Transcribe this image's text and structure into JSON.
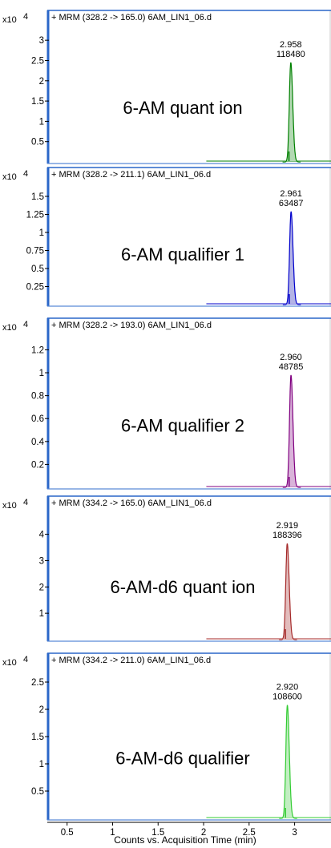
{
  "chart_data": [
    {
      "type": "line",
      "title": "+ MRM (328.2 -> 165.0) 6AM_LIN1_06.d",
      "annotation": "6-AM quant ion",
      "exponent_label": "x10",
      "exponent": "4",
      "color": "#008000",
      "fill": "#b3d9b3",
      "y_ticks": [
        "3",
        "2.5",
        "2",
        "1.5",
        "1",
        "0.5"
      ],
      "y_values": [
        3,
        2.5,
        2,
        1.5,
        1,
        0.5
      ],
      "ylim": [
        0,
        3.3
      ],
      "peak": {
        "rt": 2.958,
        "rt_label": "2.958",
        "area": "118480",
        "height": 2.45,
        "width": 0.035
      },
      "trace_start": 2.03
    },
    {
      "type": "line",
      "title": "+ MRM (328.2 -> 211.1) 6AM_LIN1_06.d",
      "annotation": "6-AM qualifier 1",
      "exponent_label": "x10",
      "exponent": "4",
      "color": "#0000cc",
      "fill": "#b3b3e6",
      "y_ticks": [
        "1.5",
        "1.25",
        "1",
        "0.75",
        "0.5",
        "0.25"
      ],
      "y_values": [
        1.5,
        1.25,
        1,
        0.75,
        0.5,
        0.25
      ],
      "ylim": [
        0,
        1.7
      ],
      "peak": {
        "rt": 2.961,
        "rt_label": "2.961",
        "area": "63487",
        "height": 1.29,
        "width": 0.035
      },
      "trace_start": 2.03
    },
    {
      "type": "line",
      "title": "+ MRM (328.2 -> 193.0) 6AM_LIN1_06.d",
      "annotation": "6-AM qualifier 2",
      "exponent_label": "x10",
      "exponent": "4",
      "color": "#800080",
      "fill": "#d9b3d9",
      "y_ticks": [
        "1.2",
        "1",
        "0.8",
        "0.6",
        "0.4",
        "0.2"
      ],
      "y_values": [
        1.2,
        1,
        0.8,
        0.6,
        0.4,
        0.2
      ],
      "ylim": [
        0,
        1.35
      ],
      "peak": {
        "rt": 2.96,
        "rt_label": "2.960",
        "area": "48785",
        "height": 0.98,
        "width": 0.035
      },
      "trace_start": 2.03
    },
    {
      "type": "line",
      "title": "+ MRM (334.2 -> 165.0) 6AM_LIN1_06.d",
      "annotation": "6-AM-d6 quant ion",
      "exponent_label": "x10",
      "exponent": "4",
      "color": "#a52a2a",
      "fill": "#e2bcbc",
      "y_ticks": [
        "4",
        "3",
        "2",
        "1"
      ],
      "y_values": [
        4,
        3,
        2,
        1
      ],
      "ylim": [
        0,
        4.9
      ],
      "peak": {
        "rt": 2.919,
        "rt_label": "2.919",
        "area": "188396",
        "height": 3.65,
        "width": 0.035
      },
      "trace_start": 2.03
    },
    {
      "type": "line",
      "title": "+ MRM (334.2 -> 211.0) 6AM_LIN1_06.d",
      "annotation": "6-AM-d6 qualifier",
      "exponent_label": "x10",
      "exponent": "4",
      "color": "#33cc33",
      "fill": "#c2eec2",
      "y_ticks": [
        "2.5",
        "2",
        "1.5",
        "1",
        "0.5"
      ],
      "y_values": [
        2.5,
        2,
        1.5,
        1,
        0.5
      ],
      "ylim": [
        0,
        2.75
      ],
      "peak": {
        "rt": 2.92,
        "rt_label": "2.920",
        "area": "108600",
        "height": 2.08,
        "width": 0.035
      },
      "trace_start": 2.03
    }
  ],
  "x_axis": {
    "label": "Counts vs. Acquisition Time (min)",
    "ticks": [
      "0.5",
      "1",
      "1.5",
      "2",
      "2.5",
      "3"
    ],
    "values": [
      0.5,
      1,
      1.5,
      2,
      2.5,
      3
    ],
    "xlim": [
      0.3,
      3.4
    ]
  }
}
